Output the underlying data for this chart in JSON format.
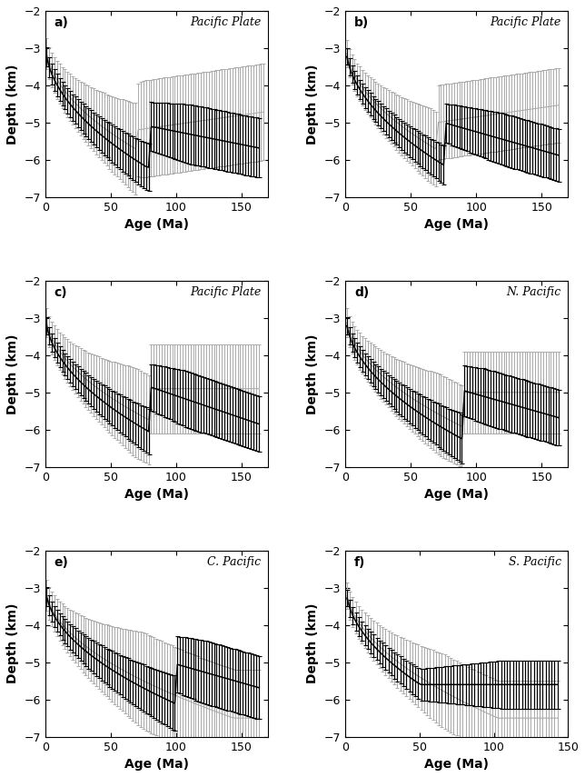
{
  "panels": [
    {
      "label": "a)",
      "title": "Pacific Plate",
      "xlim": [
        0,
        170
      ],
      "ylim": [
        -7,
        -2
      ]
    },
    {
      "label": "b)",
      "title": "Pacific Plate",
      "xlim": [
        0,
        170
      ],
      "ylim": [
        -7,
        -2
      ]
    },
    {
      "label": "c)",
      "title": "Pacific Plate",
      "xlim": [
        0,
        170
      ],
      "ylim": [
        -7,
        -2
      ]
    },
    {
      "label": "d)",
      "title": "N. Pacific",
      "xlim": [
        0,
        170
      ],
      "ylim": [
        -7,
        -2
      ]
    },
    {
      "label": "e)",
      "title": "C. Pacific",
      "xlim": [
        0,
        170
      ],
      "ylim": [
        -7,
        -2
      ]
    },
    {
      "label": "f)",
      "title": "S. Pacific",
      "xlim": [
        0,
        150
      ],
      "ylim": [
        -7,
        -2
      ]
    }
  ],
  "thin_color": "#aaaaaa",
  "thick_color": "#000000"
}
